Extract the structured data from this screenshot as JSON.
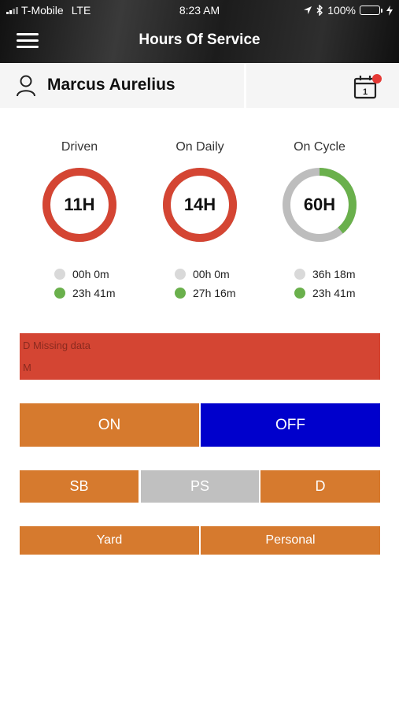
{
  "status_bar": {
    "carrier": "T-Mobile",
    "network": "LTE",
    "time": "8:23 AM",
    "battery": "100%",
    "icons": [
      "signal-icon",
      "location-icon",
      "bluetooth-icon",
      "battery-icon",
      "charging-icon"
    ]
  },
  "nav": {
    "title": "Hours Of Service",
    "menu_icon": "hamburger-icon"
  },
  "user": {
    "name": "Marcus Aurelius",
    "icon": "user-icon",
    "calendar_icon": "calendar-icon",
    "calendar_day": "1"
  },
  "rings": [
    {
      "label": "Driven",
      "value": "11H",
      "used": "00h 0m",
      "remaining": "23h 41m",
      "progress": 1.0,
      "color": "#d44533"
    },
    {
      "label": "On Daily",
      "value": "14H",
      "used": "00h 0m",
      "remaining": "27h 16m",
      "progress": 1.0,
      "color": "#d44533"
    },
    {
      "label": "On Cycle",
      "value": "60H",
      "used": "36h 18m",
      "remaining": "23h 41m",
      "progress": 0.39,
      "color": "#6ab04c"
    }
  ],
  "alert": {
    "line1": "D Missing data",
    "line2": "M"
  },
  "duty": {
    "on": "ON",
    "off": "OFF",
    "sb": "SB",
    "ps": "PS",
    "d": "D",
    "yard": "Yard",
    "personal": "Personal"
  },
  "colors": {
    "orange": "#d67a2e",
    "blue": "#0000cc",
    "red": "#d44533",
    "green": "#6ab04c",
    "grey": "#c0c0c0"
  }
}
